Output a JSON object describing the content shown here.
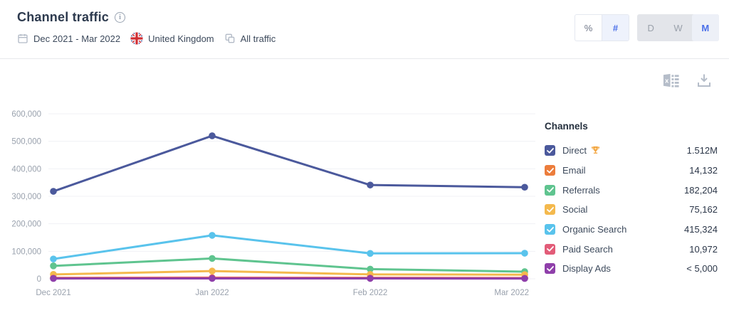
{
  "header": {
    "title": "Channel traffic",
    "date_range": "Dec 2021 - Mar 2022",
    "country": "United Kingdom",
    "traffic_filter": "All traffic",
    "unit_toggle": {
      "percent_label": "%",
      "number_label": "#",
      "selected": "#"
    },
    "granularity_toggle": {
      "options": [
        "D",
        "W",
        "M"
      ],
      "selected": "M"
    }
  },
  "toolbar": {
    "icons": [
      "excel-export",
      "download"
    ]
  },
  "legend": {
    "title": "Channels",
    "items": [
      {
        "label": "Direct",
        "value": "1.512M",
        "color": "#4B599C",
        "leader": true
      },
      {
        "label": "Email",
        "value": "14,132",
        "color": "#EC7D3C",
        "leader": false
      },
      {
        "label": "Referrals",
        "value": "182,204",
        "color": "#5FC48F",
        "leader": false
      },
      {
        "label": "Social",
        "value": "75,162",
        "color": "#F4B94D",
        "leader": false
      },
      {
        "label": "Organic Search",
        "value": "415,324",
        "color": "#59C3EC",
        "leader": false
      },
      {
        "label": "Paid Search",
        "value": "10,972",
        "color": "#E25C78",
        "leader": false
      },
      {
        "label": "Display Ads",
        "value": "< 5,000",
        "color": "#8F3FAA",
        "leader": false
      }
    ]
  },
  "chart_data": {
    "type": "line",
    "title": "Channel traffic",
    "x": [
      "Dec 2021",
      "Jan 2022",
      "Feb 2022",
      "Mar 2022"
    ],
    "series": [
      {
        "name": "Direct",
        "color": "#4B599C",
        "values": [
          318000,
          520000,
          341000,
          333000
        ]
      },
      {
        "name": "Email",
        "color": "#EC7D3C",
        "values": [
          3400,
          4300,
          3600,
          2832
        ]
      },
      {
        "name": "Referrals",
        "color": "#5FC48F",
        "values": [
          47000,
          74000,
          35204,
          26000
        ]
      },
      {
        "name": "Social",
        "color": "#F4B94D",
        "values": [
          16000,
          28162,
          16000,
          15000
        ]
      },
      {
        "name": "Organic Search",
        "color": "#59C3EC",
        "values": [
          72000,
          158000,
          92324,
          93000
        ]
      },
      {
        "name": "Paid Search",
        "color": "#E25C78",
        "values": [
          2600,
          3200,
          2900,
          2272
        ]
      },
      {
        "name": "Display Ads",
        "color": "#8F3FAA",
        "values": [
          1100,
          1400,
          1200,
          1000
        ]
      }
    ],
    "ylim": [
      0,
      600000
    ],
    "yticks": [
      0,
      100000,
      200000,
      300000,
      400000,
      500000,
      600000
    ],
    "xlabel": "",
    "ylabel": "",
    "grid": true,
    "legend_position": "right"
  },
  "colors": {
    "accent_blue": "#4A6FE9",
    "grid": "#F0F1F4",
    "axis_label": "#99A1AD",
    "icon_gray": "#B5BDC9"
  }
}
